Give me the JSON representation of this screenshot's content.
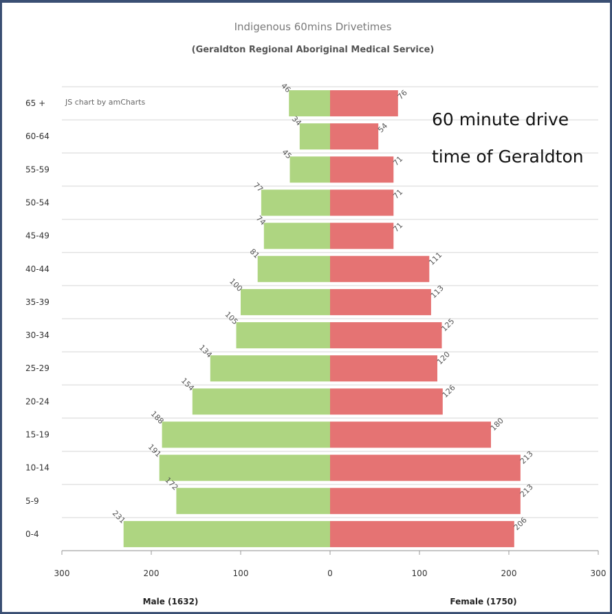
{
  "chart_data": {
    "type": "bar",
    "orientation": "horizontal",
    "title": "Indigenous 60mins Drivetimes",
    "subtitle": "(Geraldton Regional Aboriginal Medical Service)",
    "credit": "JS chart by amCharts",
    "annotation": [
      "60 minute drive",
      "time of Geraldton"
    ],
    "categories": [
      "65 +",
      "60-64",
      "55-59",
      "50-54",
      "45-49",
      "40-44",
      "35-39",
      "30-34",
      "25-29",
      "20-24",
      "15-19",
      "10-14",
      "5-9",
      "0-4"
    ],
    "series": [
      {
        "name": "Male (1632)",
        "side": "left",
        "color": "#aed581",
        "values": [
          46,
          34,
          45,
          77,
          74,
          81,
          100,
          105,
          134,
          154,
          188,
          191,
          172,
          231
        ]
      },
      {
        "name": "Female (1750)",
        "side": "right",
        "color": "#e57373",
        "values": [
          76,
          54,
          71,
          71,
          71,
          111,
          113,
          125,
          120,
          126,
          180,
          213,
          213,
          206
        ]
      }
    ],
    "xlim": [
      -300,
      300
    ],
    "x_ticks": [
      {
        "value": -300,
        "label": "300"
      },
      {
        "value": -200,
        "label": "200"
      },
      {
        "value": -100,
        "label": "100"
      },
      {
        "value": 0,
        "label": "0"
      },
      {
        "value": 100,
        "label": "100"
      },
      {
        "value": 200,
        "label": "200"
      },
      {
        "value": 300,
        "label": "300"
      }
    ],
    "grid": true,
    "legend": "bottom"
  }
}
